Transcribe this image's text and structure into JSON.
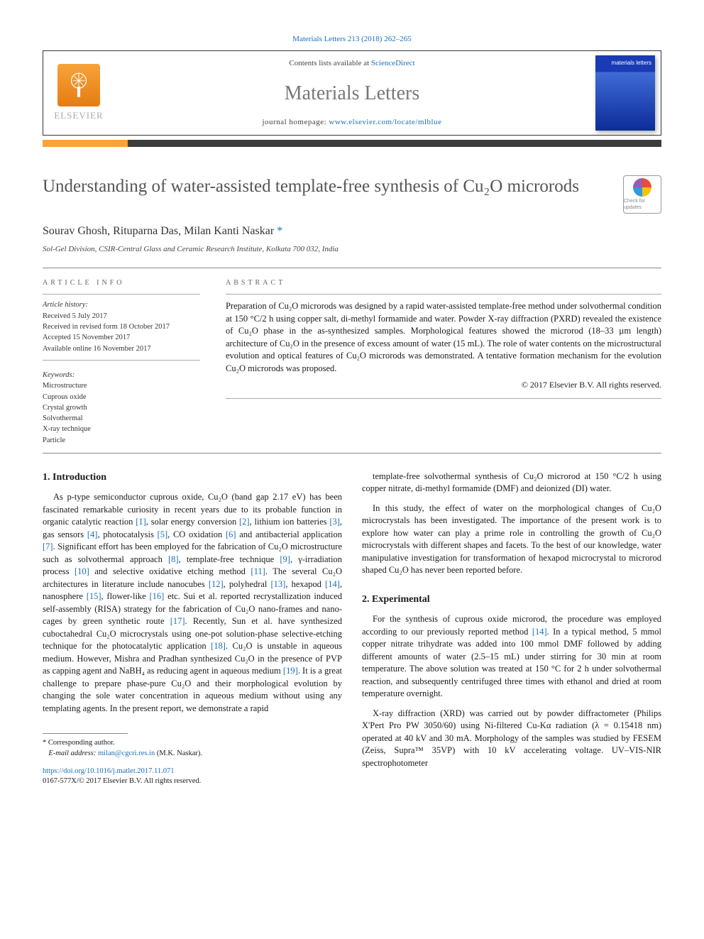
{
  "top_citation": "Materials Letters 213 (2018) 262–265",
  "header": {
    "contents_prefix": "Contents lists available at ",
    "contents_link": "ScienceDirect",
    "journal_title": "Materials Letters",
    "homepage_prefix": "journal homepage: ",
    "homepage_url": "www.elsevier.com/locate/mlblue",
    "elsevier_name": "ELSEVIER",
    "cover_text": "materials letters"
  },
  "article": {
    "title_html": "Understanding of water-assisted template-free synthesis of Cu₂O microrods",
    "authors_plain": "Sourav Ghosh, Rituparna Das, Milan Kanti Naskar",
    "affiliation": "Sol-Gel Division, CSIR-Central Glass and Ceramic Research Institute, Kolkata 700 032, India",
    "crossmark_label": "Check for updates"
  },
  "info": {
    "label": "ARTICLE INFO",
    "history_head": "Article history:",
    "history": [
      "Received 5 July 2017",
      "Received in revised form 18 October 2017",
      "Accepted 15 November 2017",
      "Available online 16 November 2017"
    ],
    "keywords_head": "Keywords:",
    "keywords": [
      "Microstructure",
      "Cuprous oxide",
      "Crystal growth",
      "Solvothermal",
      "X-ray technique",
      "Particle"
    ]
  },
  "abstract": {
    "label": "ABSTRACT",
    "text": "Preparation of Cu₂O microrods was designed by a rapid water-assisted template-free method under solvothermal condition at 150 °C/2 h using copper salt, di-methyl formamide and water. Powder X-ray diffraction (PXRD) revealed the existence of Cu₂O phase in the as-synthesized samples. Morphological features showed the microrod (18–33 µm length) architecture of Cu₂O in the presence of excess amount of water (15 mL). The role of water contents on the microstructural evolution and optical features of Cu₂O microrods was demonstrated. A tentative formation mechanism for the evolution Cu₂O microrods was proposed.",
    "copyright": "© 2017 Elsevier B.V. All rights reserved."
  },
  "sections": {
    "intro_head": "1. Introduction",
    "intro_p1": "As p-type semiconductor cuprous oxide, Cu₂O (band gap 2.17 eV) has been fascinated remarkable curiosity in recent years due to its probable function in organic catalytic reaction [1], solar energy conversion [2], lithium ion batteries [3], gas sensors [4], photocatalysis [5], CO oxidation [6] and antibacterial application [7]. Significant effort has been employed for the fabrication of Cu₂O microstructure such as solvothermal approach [8], template-free technique [9], γ-irradiation process [10] and selective oxidative etching method [11]. The several Cu₂O architectures in literature include nanocubes [12], polyhedral [13], hexapod [14], nanosphere [15], flower-like [16] etc. Sui et al. reported recrystallization induced self-assembly (RISA) strategy for the fabrication of Cu₂O nano-frames and nano-cages by green synthetic route [17]. Recently, Sun et al. have synthesized cuboctahedral Cu₂O microcrystals using one-pot solution-phase selective-etching technique for the photocatalytic application [18]. Cu₂O is unstable in aqueous medium. However, Mishra and Pradhan synthesized Cu₂O in the presence of PVP as capping agent and NaBH₄ as reducing agent in aqueous medium [19]. It is a great challenge to prepare phase-pure Cu₂O and their morphological evolution by changing the sole water concentration in aqueous medium without using any templating agents. In the present report, we demonstrate a rapid",
    "intro_p2_right": "template-free solvothermal synthesis of Cu₂O microrod at 150 °C/2 h using copper nitrate, di-methyl formamide (DMF) and deionized (DI) water.",
    "intro_p3_right": "In this study, the effect of water on the morphological changes of Cu₂O microcrystals has been investigated. The importance of the present work is to explore how water can play a prime role in controlling the growth of Cu₂O microcrystals with different shapes and facets. To the best of our knowledge, water manipulative investigation for transformation of hexapod microcrystal to microrod shaped Cu₂O has never been reported before.",
    "exp_head": "2. Experimental",
    "exp_p1": "For the synthesis of cuprous oxide microrod, the procedure was employed according to our previously reported method [14]. In a typical method, 5 mmol copper nitrate trihydrate was added into 100 mmol DMF followed by adding different amounts of water (2.5–15 mL) under stirring for 30 min at room temperature. The above solution was treated at 150 °C for 2 h under solvothermal reaction, and subsequently centrifuged three times with ethanol and dried at room temperature overnight.",
    "exp_p2": "X-ray diffraction (XRD) was carried out by powder diffractometer (Philips X'Pert Pro PW 3050/60) using Ni-filtered Cu-Kα radiation (λ = 0.15418 nm) operated at 40 kV and 30 mA. Morphology of the samples was studied by FESEM (Zeiss, Supra™ 35VP) with 10 kV accelerating voltage. UV–VIS-NIR spectrophotometer"
  },
  "refs_to_link": [
    "[1]",
    "[2]",
    "[3]",
    "[4]",
    "[5]",
    "[6]",
    "[7]",
    "[8]",
    "[9]",
    "[10]",
    "[11]",
    "[12]",
    "[13]",
    "[14]",
    "[15]",
    "[16]",
    "[17]",
    "[18]",
    "[19]"
  ],
  "footnotes": {
    "corr": "* Corresponding author.",
    "email_label": "E-mail address: ",
    "email": "milan@cgcri.res.in",
    "email_suffix": " (M.K. Naskar)."
  },
  "doi": {
    "url": "https://doi.org/10.1016/j.matlet.2017.11.071",
    "issn_line": "0167-577X/© 2017 Elsevier B.V. All rights reserved."
  },
  "colors": {
    "link": "#1a6fb8",
    "accent_orange": "#f7a33a",
    "accent_dark": "#3d3d3d",
    "title_gray": "#555555",
    "text": "#1a1a1a",
    "muted": "#666666"
  },
  "typography": {
    "body_pt": 12.5,
    "title_pt": 25,
    "journal_head_pt": 28,
    "meta_pt": 10.5
  }
}
